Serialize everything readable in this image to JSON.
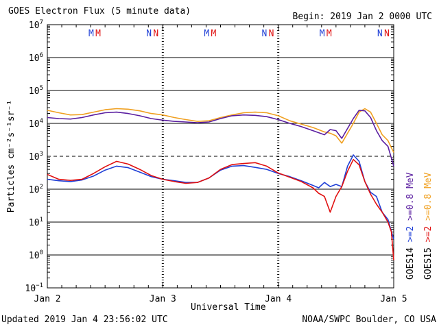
{
  "header": {
    "title": "GOES Electron Flux (5 minute data)",
    "begin": "Begin: 2019 Jan 2 0000 UTC"
  },
  "footer": {
    "updated": "Updated 2019 Jan  4 23:56:02 UTC",
    "credit": "NOAA/SWPC Boulder, CO USA"
  },
  "chart_data": {
    "type": "line",
    "title": "GOES Electron Flux (5 minute data)",
    "xlabel": "Universal Time",
    "ylabel": "Particles cm⁻²s⁻¹sr⁻¹",
    "x_ticks": [
      "Jan 2",
      "Jan 3",
      "Jan 4",
      "Jan 5"
    ],
    "xlim_days": [
      0,
      3
    ],
    "ylim_log10": [
      -1,
      7
    ],
    "y_tick_exponents": [
      -1,
      0,
      1,
      2,
      3,
      4,
      5,
      6,
      7
    ],
    "reference_line_dashed": 1000,
    "gridlines": "horizontal decades",
    "top_markers": [
      {
        "text": "M",
        "color": "#1f3fd6",
        "x": 0.38
      },
      {
        "text": "M",
        "color": "#e01010",
        "x": 0.44
      },
      {
        "text": "N",
        "color": "#1f3fd6",
        "x": 0.88
      },
      {
        "text": "N",
        "color": "#e01010",
        "x": 0.94
      },
      {
        "text": "M",
        "color": "#1f3fd6",
        "x": 1.38
      },
      {
        "text": "M",
        "color": "#e01010",
        "x": 1.44
      },
      {
        "text": "N",
        "color": "#1f3fd6",
        "x": 1.88
      },
      {
        "text": "N",
        "color": "#e01010",
        "x": 1.94
      },
      {
        "text": "M",
        "color": "#1f3fd6",
        "x": 2.38
      },
      {
        "text": "M",
        "color": "#e01010",
        "x": 2.44
      },
      {
        "text": "N",
        "color": "#1f3fd6",
        "x": 2.88
      },
      {
        "text": "N",
        "color": "#e01010",
        "x": 2.94
      }
    ],
    "legend": {
      "placement": "right-vertical",
      "rows": [
        {
          "label": "GOES14",
          "entries": [
            {
              "text": ">=2",
              "color": "#1f3fd6"
            },
            {
              "text": ">=0.8 MeV",
              "color": "#5a1ea0"
            }
          ]
        },
        {
          "label": "GOES15",
          "entries": [
            {
              "text": ">=2",
              "color": "#e01010"
            },
            {
              "text": ">=0.8 MeV",
              "color": "#f0a020"
            }
          ]
        }
      ]
    },
    "series": [
      {
        "name": "GOES15 >=0.8 MeV",
        "color": "#f0a020",
        "x": [
          0,
          0.1,
          0.2,
          0.3,
          0.4,
          0.5,
          0.6,
          0.7,
          0.8,
          0.9,
          1.0,
          1.1,
          1.2,
          1.3,
          1.4,
          1.5,
          1.6,
          1.7,
          1.8,
          1.9,
          2.0,
          2.1,
          2.2,
          2.3,
          2.4,
          2.45,
          2.5,
          2.55,
          2.6,
          2.65,
          2.7,
          2.75,
          2.8,
          2.85,
          2.9,
          2.95,
          3.0
        ],
        "y": [
          25000,
          21000,
          18000,
          18500,
          22000,
          26000,
          28000,
          27000,
          24000,
          20000,
          18000,
          15000,
          13000,
          11500,
          12000,
          15000,
          18000,
          21000,
          22000,
          21000,
          17000,
          12000,
          9500,
          7500,
          5500,
          5000,
          4200,
          2500,
          5000,
          10000,
          22000,
          28000,
          22000,
          10000,
          4500,
          3000,
          1300
        ]
      },
      {
        "name": "GOES14 >=0.8 MeV",
        "color": "#5a1ea0",
        "x": [
          0,
          0.1,
          0.2,
          0.3,
          0.4,
          0.5,
          0.6,
          0.7,
          0.8,
          0.9,
          1.0,
          1.1,
          1.2,
          1.3,
          1.4,
          1.5,
          1.6,
          1.7,
          1.8,
          1.9,
          2.0,
          2.1,
          2.2,
          2.3,
          2.4,
          2.45,
          2.5,
          2.55,
          2.6,
          2.65,
          2.7,
          2.75,
          2.8,
          2.85,
          2.9,
          2.95,
          3.0
        ],
        "y": [
          15000,
          14000,
          13500,
          15000,
          18000,
          21000,
          22000,
          20000,
          17000,
          14000,
          12500,
          11500,
          11000,
          10500,
          11000,
          14000,
          17000,
          18000,
          17500,
          16000,
          13000,
          10000,
          8000,
          6000,
          4500,
          6500,
          6000,
          3500,
          7000,
          14000,
          25000,
          24000,
          15000,
          6000,
          3000,
          2000,
          500
        ]
      },
      {
        "name": "GOES14 >=2",
        "color": "#1f3fd6",
        "x": [
          0,
          0.1,
          0.2,
          0.3,
          0.4,
          0.5,
          0.6,
          0.7,
          0.8,
          0.9,
          1.0,
          1.1,
          1.2,
          1.3,
          1.4,
          1.5,
          1.6,
          1.7,
          1.8,
          1.9,
          2.0,
          2.1,
          2.2,
          2.3,
          2.35,
          2.4,
          2.45,
          2.5,
          2.55,
          2.6,
          2.65,
          2.7,
          2.75,
          2.8,
          2.85,
          2.9,
          2.95,
          3.0
        ],
        "y": [
          200,
          180,
          170,
          190,
          250,
          380,
          500,
          450,
          330,
          240,
          200,
          180,
          160,
          160,
          220,
          380,
          500,
          520,
          460,
          400,
          300,
          240,
          180,
          130,
          110,
          160,
          120,
          140,
          120,
          500,
          1100,
          700,
          170,
          80,
          60,
          20,
          12,
          3
        ]
      },
      {
        "name": "GOES15 >=2",
        "color": "#e01010",
        "x": [
          0,
          0.1,
          0.2,
          0.3,
          0.4,
          0.5,
          0.6,
          0.7,
          0.8,
          0.9,
          1.0,
          1.1,
          1.2,
          1.3,
          1.4,
          1.5,
          1.6,
          1.7,
          1.8,
          1.9,
          2.0,
          2.1,
          2.2,
          2.3,
          2.35,
          2.4,
          2.45,
          2.5,
          2.55,
          2.6,
          2.65,
          2.7,
          2.75,
          2.8,
          2.85,
          2.9,
          2.95,
          2.98,
          3.0
        ],
        "y": [
          280,
          200,
          185,
          200,
          300,
          480,
          700,
          580,
          400,
          260,
          200,
          170,
          150,
          160,
          220,
          400,
          560,
          600,
          640,
          500,
          310,
          230,
          170,
          110,
          75,
          60,
          20,
          60,
          120,
          350,
          800,
          550,
          170,
          70,
          35,
          20,
          10,
          5,
          0.7
        ]
      }
    ]
  }
}
